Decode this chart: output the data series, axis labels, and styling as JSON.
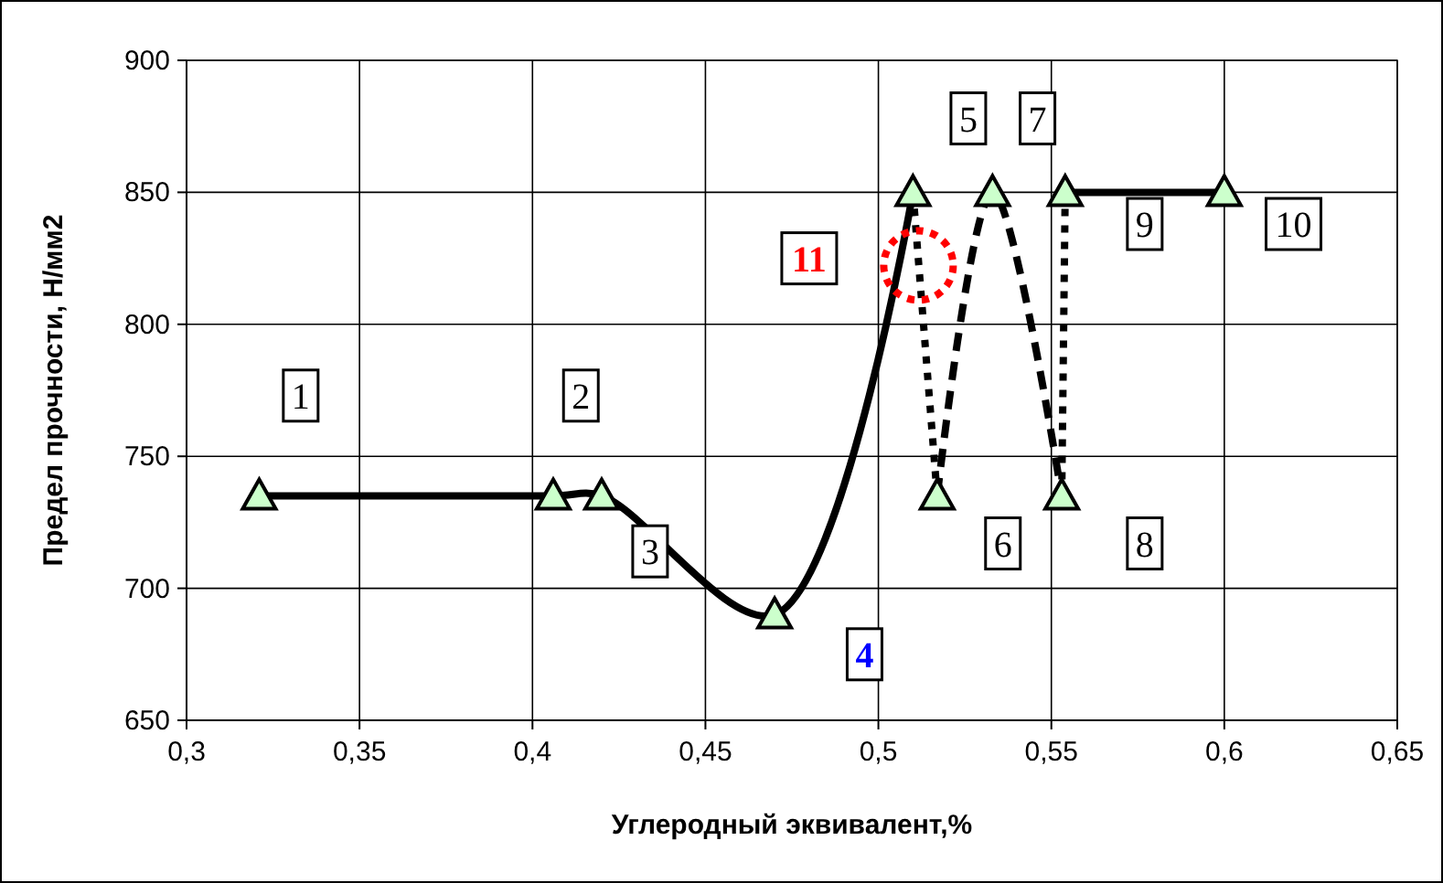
{
  "chart_data": {
    "type": "line",
    "xlabel": "Углеродный эквивалент,%",
    "ylabel": "Предел прочности, Н/мм2",
    "xlim": [
      0.3,
      0.65
    ],
    "xticks": [
      {
        "value": 0.3,
        "label": "0,3"
      },
      {
        "value": 0.35,
        "label": "0,35"
      },
      {
        "value": 0.4,
        "label": "0,4"
      },
      {
        "value": 0.45,
        "label": "0,45"
      },
      {
        "value": 0.5,
        "label": "0,5"
      },
      {
        "value": 0.55,
        "label": "0,55"
      },
      {
        "value": 0.6,
        "label": "0,6"
      },
      {
        "value": 0.65,
        "label": "0,65"
      }
    ],
    "ylim": [
      650,
      900
    ],
    "yticks": [
      650,
      700,
      750,
      800,
      850,
      900
    ],
    "grid": true,
    "series": [
      {
        "type": "line",
        "color": "#000000",
        "line_style": "solid",
        "marker": "none",
        "x": [
          0.321,
          0.406,
          0.42,
          0.47,
          0.51
        ],
        "values": [
          735,
          735,
          735,
          690,
          850
        ]
      },
      {
        "type": "line",
        "color": "#000000",
        "line_style": "dotted",
        "marker": "none",
        "x": [
          0.51,
          0.517
        ],
        "values": [
          850,
          735
        ]
      },
      {
        "type": "line",
        "color": "#000000",
        "line_style": "dashed",
        "marker": "none",
        "x": [
          0.517,
          0.533,
          0.553
        ],
        "values": [
          735,
          850,
          735
        ]
      },
      {
        "type": "line",
        "color": "#000000",
        "line_style": "dotted",
        "marker": "none",
        "x": [
          0.553,
          0.554
        ],
        "values": [
          735,
          850
        ]
      },
      {
        "type": "line",
        "color": "#000000",
        "line_style": "solid",
        "marker": "none",
        "x": [
          0.554,
          0.6
        ],
        "values": [
          850,
          850
        ]
      },
      {
        "type": "scatter",
        "color": "#ccffcc",
        "marker": "triangle",
        "x": [
          0.321,
          0.406,
          0.42,
          0.47,
          0.51,
          0.517,
          0.533,
          0.553,
          0.554,
          0.6
        ],
        "values": [
          735,
          735,
          735,
          690,
          850,
          735,
          850,
          735,
          850,
          850
        ]
      }
    ],
    "annotations": [
      {
        "text": "1",
        "x": 0.333,
        "y": 773
      },
      {
        "text": "2",
        "x": 0.414,
        "y": 773
      },
      {
        "text": "3",
        "x": 0.434,
        "y": 714
      },
      {
        "text": "4",
        "x": 0.496,
        "y": 675
      },
      {
        "text": "5",
        "x": 0.526,
        "y": 878
      },
      {
        "text": "6",
        "x": 0.536,
        "y": 717
      },
      {
        "text": "7",
        "x": 0.546,
        "y": 878
      },
      {
        "text": "8",
        "x": 0.577,
        "y": 717
      },
      {
        "text": "9",
        "x": 0.577,
        "y": 838
      },
      {
        "text": "10",
        "x": 0.62,
        "y": 838
      },
      {
        "text": "11",
        "x": 0.48,
        "y": 825
      }
    ]
  }
}
